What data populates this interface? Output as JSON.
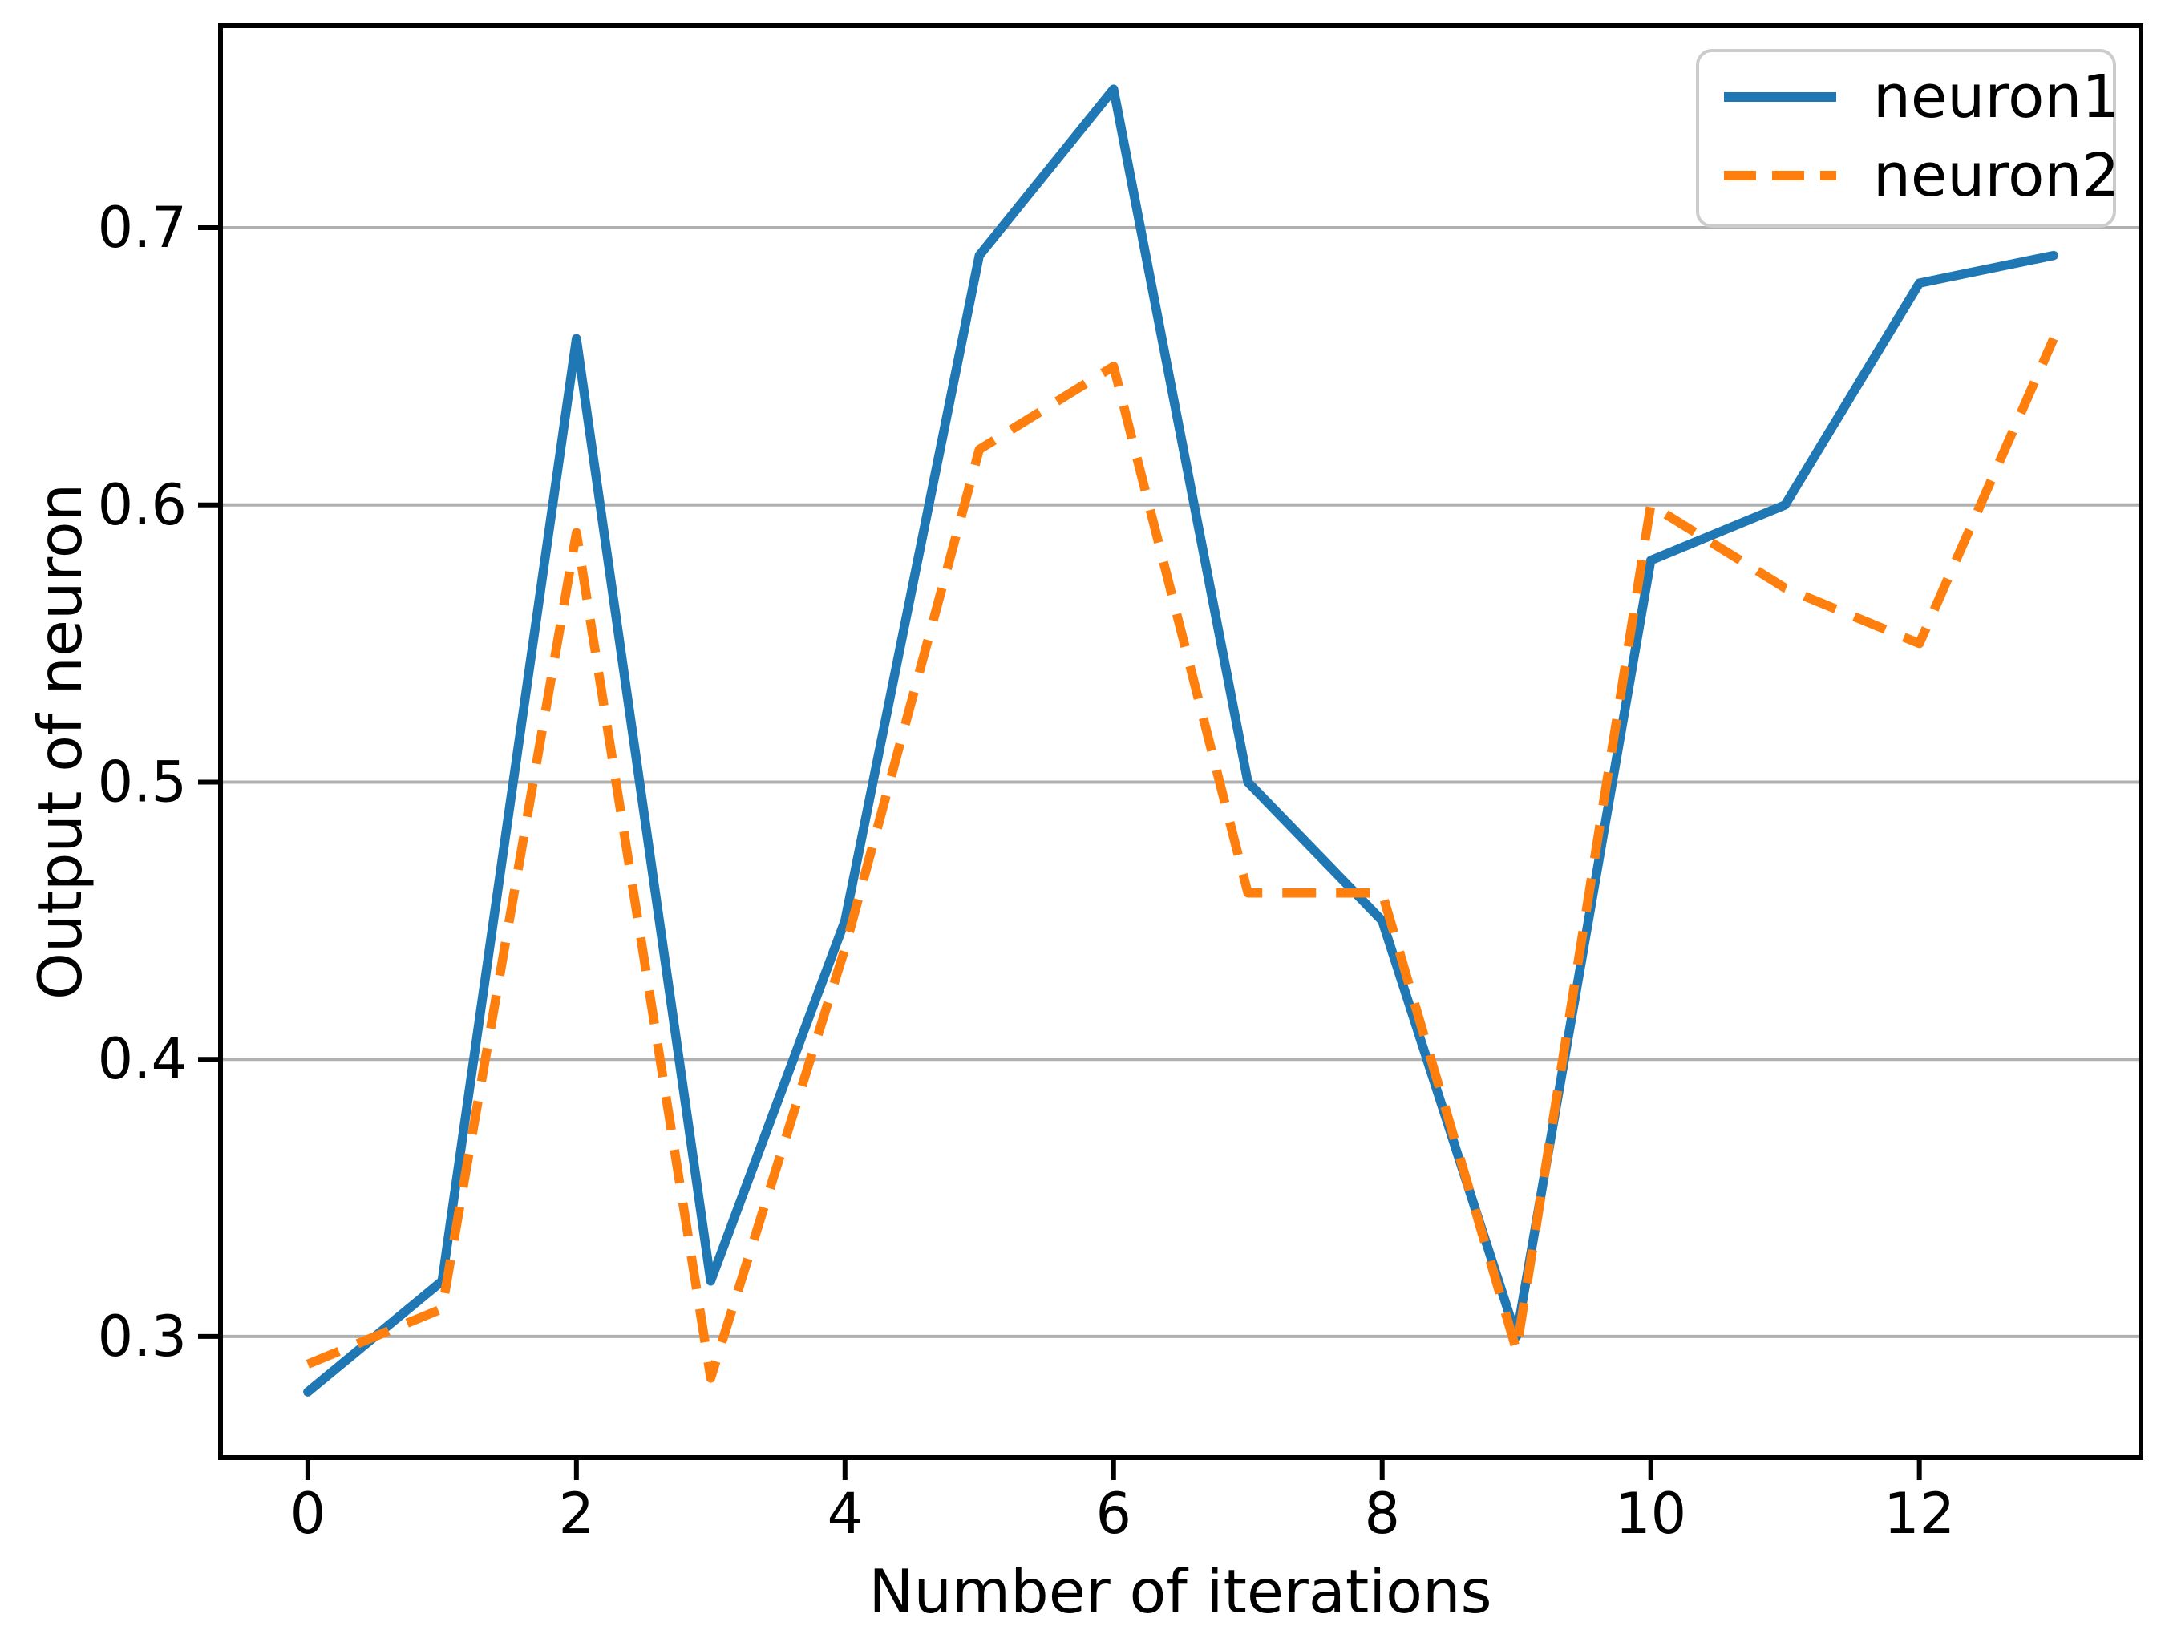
{
  "chart_data": {
    "type": "line",
    "title": "",
    "xlabel": "Number of iterations",
    "ylabel": "Output of neuron",
    "x": [
      0,
      1,
      2,
      3,
      4,
      5,
      6,
      7,
      8,
      9,
      10,
      11,
      12,
      13
    ],
    "series": [
      {
        "name": "neuron1",
        "color": "#1f77b4",
        "style": "solid",
        "values": [
          0.28,
          0.32,
          0.66,
          0.32,
          0.45,
          0.69,
          0.75,
          0.5,
          0.45,
          0.3,
          0.58,
          0.6,
          0.68,
          0.69
        ]
      },
      {
        "name": "neuron2",
        "color": "#ff7f0e",
        "style": "dashed",
        "values": [
          0.29,
          0.31,
          0.59,
          0.285,
          0.44,
          0.62,
          0.65,
          0.46,
          0.46,
          0.295,
          0.6,
          0.57,
          0.55,
          0.66
        ]
      }
    ],
    "xticks": [
      0,
      2,
      4,
      6,
      8,
      10,
      12
    ],
    "xticklabels": [
      "0",
      "2",
      "4",
      "6",
      "8",
      "10",
      "12"
    ],
    "yticks": [
      0.3,
      0.4,
      0.5,
      0.6,
      0.7
    ],
    "yticklabels": [
      "0.3",
      "0.4",
      "0.5",
      "0.6",
      "0.7"
    ],
    "xlim": [
      -0.65,
      13.65
    ],
    "ylim": [
      0.2563,
      0.7729
    ],
    "grid": "horizontal",
    "grid_color": "#b0b0b0",
    "spine_color": "#000000",
    "background": "#ffffff",
    "legend": {
      "position": "upper right",
      "entries": [
        "neuron1",
        "neuron2"
      ]
    }
  }
}
